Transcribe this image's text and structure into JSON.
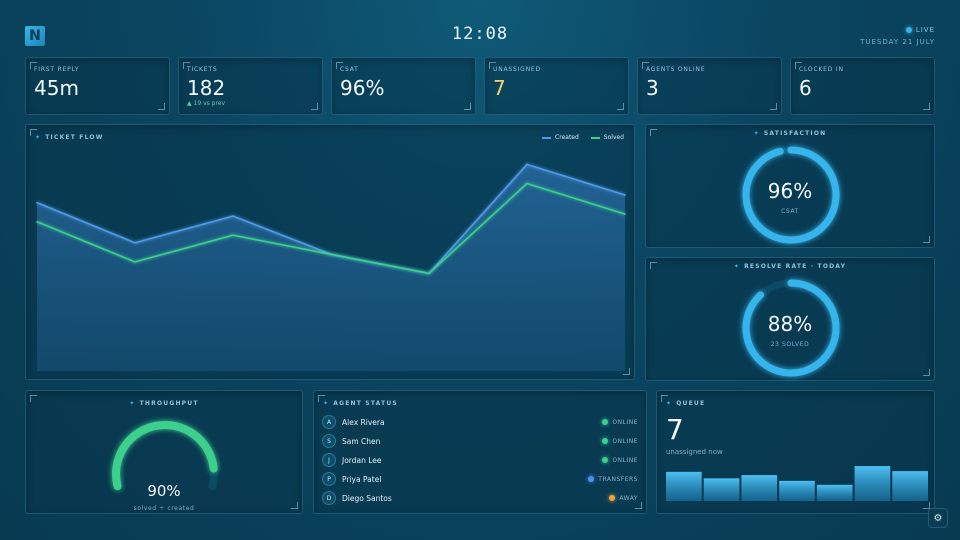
{
  "header": {
    "logo_letter": "N",
    "clock": "12:08",
    "live_label": "LIVE",
    "date": "TUESDAY 21 JULY"
  },
  "kpis": [
    {
      "label": "FIRST REPLY",
      "value": "45m"
    },
    {
      "label": "TICKETS",
      "value": "182",
      "sub": "▲ 19 vs prev"
    },
    {
      "label": "CSAT",
      "value": "96%"
    },
    {
      "label": "UNASSIGNED",
      "value": "7"
    },
    {
      "label": "AGENTS ONLINE",
      "value": "3"
    },
    {
      "label": "CLOCKED IN",
      "value": "6"
    }
  ],
  "ticket_flow": {
    "title": "TICKET FLOW",
    "legend": {
      "created": "Created",
      "solved": "Solved"
    }
  },
  "chart_data": {
    "type": "area",
    "title": "TICKET FLOW",
    "x": [
      0,
      1,
      2,
      3,
      4,
      5,
      6
    ],
    "series": [
      {
        "name": "Created",
        "color": "#4f9ae8",
        "values": [
          88,
          67,
          81,
          61,
          51,
          108,
          92
        ]
      },
      {
        "name": "Solved",
        "color": "#3ccf8e",
        "values": [
          78,
          57,
          71,
          61,
          51,
          98,
          82
        ]
      }
    ],
    "ylim": [
      0,
      115
    ],
    "grid": false,
    "legend": "top-right"
  },
  "satisfaction": {
    "title": "SATISFACTION",
    "value": "96%",
    "sub": "CSAT",
    "fraction": 0.96
  },
  "resolve_rate": {
    "title": "RESOLVE RATE · TODAY",
    "value": "88%",
    "sub": "23 SOLVED",
    "fraction": 0.88
  },
  "throughput": {
    "title": "THROUGHPUT",
    "value": "90%",
    "sub": "solved ÷ created",
    "fraction": 0.9
  },
  "agents": {
    "title": "AGENT STATUS",
    "items": [
      {
        "initial": "A",
        "name": "Alex Rivera",
        "status": "ONLINE",
        "color": "#3ccf8e"
      },
      {
        "initial": "S",
        "name": "Sam Chen",
        "status": "ONLINE",
        "color": "#3ccf8e"
      },
      {
        "initial": "J",
        "name": "Jordan Lee",
        "status": "ONLINE",
        "color": "#3ccf8e"
      },
      {
        "initial": "P",
        "name": "Priya Patel",
        "status": "TRANSFERS",
        "color": "#4f8ff0"
      },
      {
        "initial": "D",
        "name": "Diego Santos",
        "status": "AWAY",
        "color": "#f2a23a"
      }
    ]
  },
  "queue": {
    "title": "QUEUE",
    "value": "7",
    "sub": "unassigned now",
    "bars": [
      0.81,
      0.63,
      0.72,
      0.56,
      0.45,
      0.97,
      0.83
    ]
  }
}
